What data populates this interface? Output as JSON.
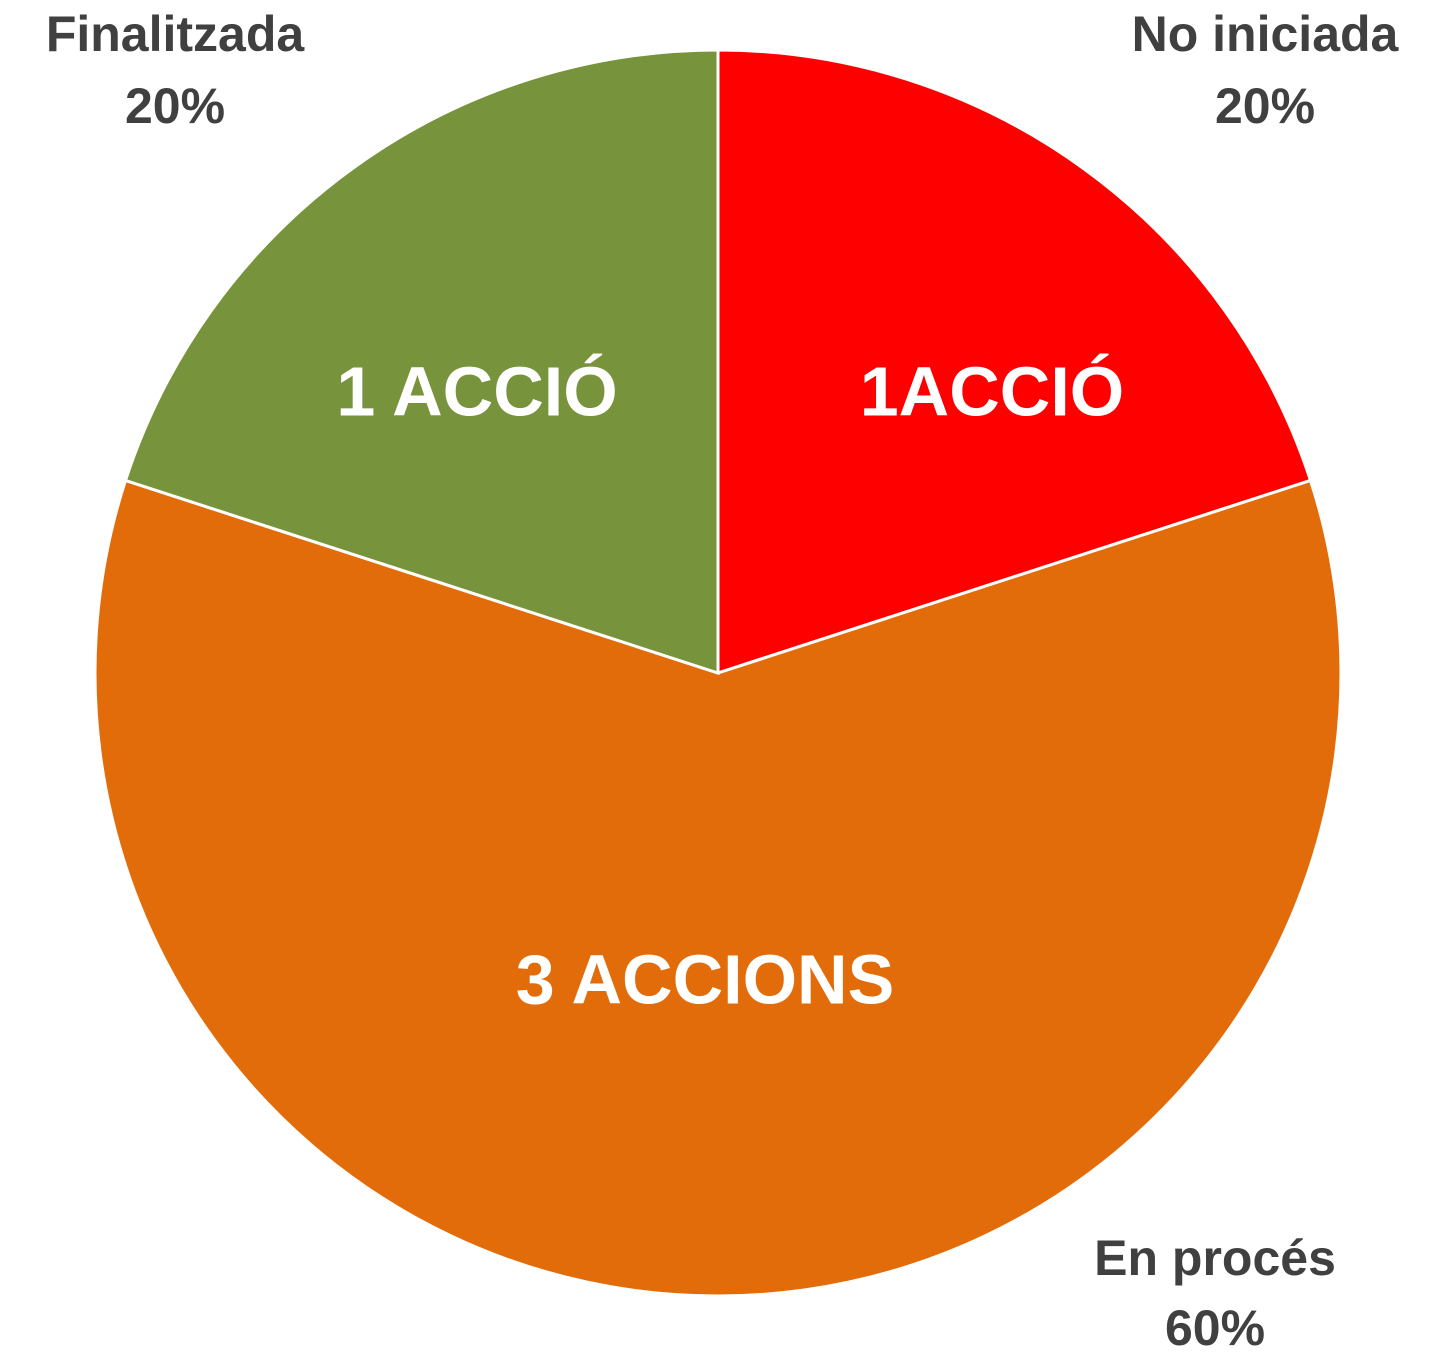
{
  "chart_data": {
    "type": "pie",
    "categories": [
      "No iniciada",
      "En procés",
      "Finalitzada"
    ],
    "values": [
      20,
      60,
      20
    ],
    "value_labels": [
      "20%",
      "60%",
      "20%"
    ],
    "inner_labels": [
      "1ACCIÓ",
      "3 ACCIONS",
      "1 ACCIÓ"
    ],
    "colors": [
      "#ff0000",
      "#e36c0a",
      "#77933c"
    ]
  }
}
